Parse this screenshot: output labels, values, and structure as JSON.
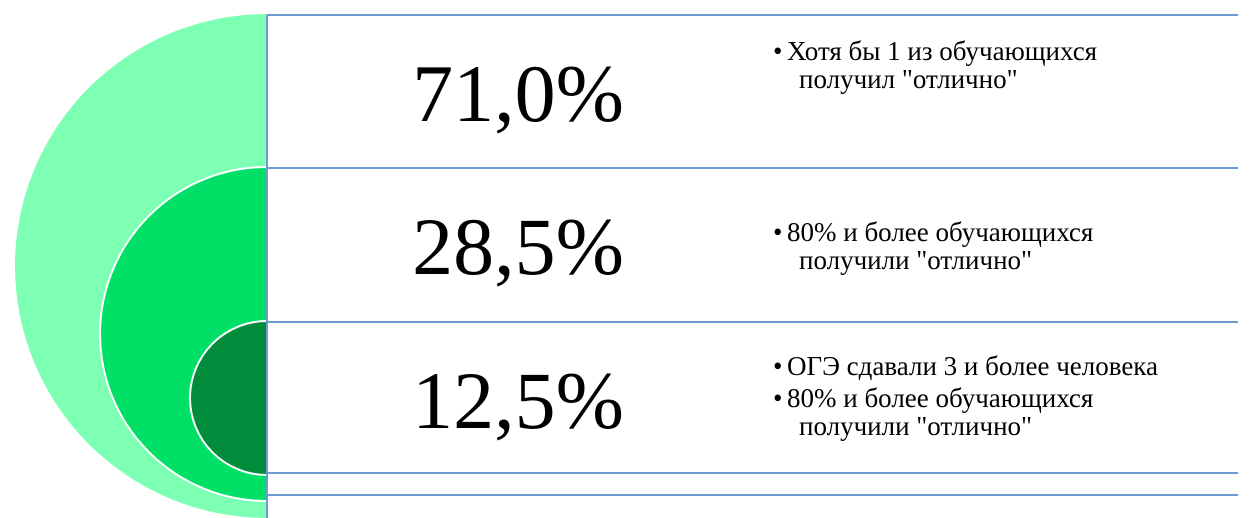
{
  "rows": [
    {
      "value": "71,0%",
      "bullets": [
        [
          "Хотя бы 1 из обучающихся",
          "получил \"отлично\""
        ]
      ]
    },
    {
      "value": "28,5%",
      "bullets": [
        [
          "80% и более обучающихся",
          "получили \"отлично\""
        ]
      ]
    },
    {
      "value": "12,5%",
      "bullets": [
        [
          "ОГЭ сдавали 3 и более человека"
        ],
        [
          "80% и более обучающихся",
          "получили \"отлично\""
        ]
      ]
    }
  ]
}
